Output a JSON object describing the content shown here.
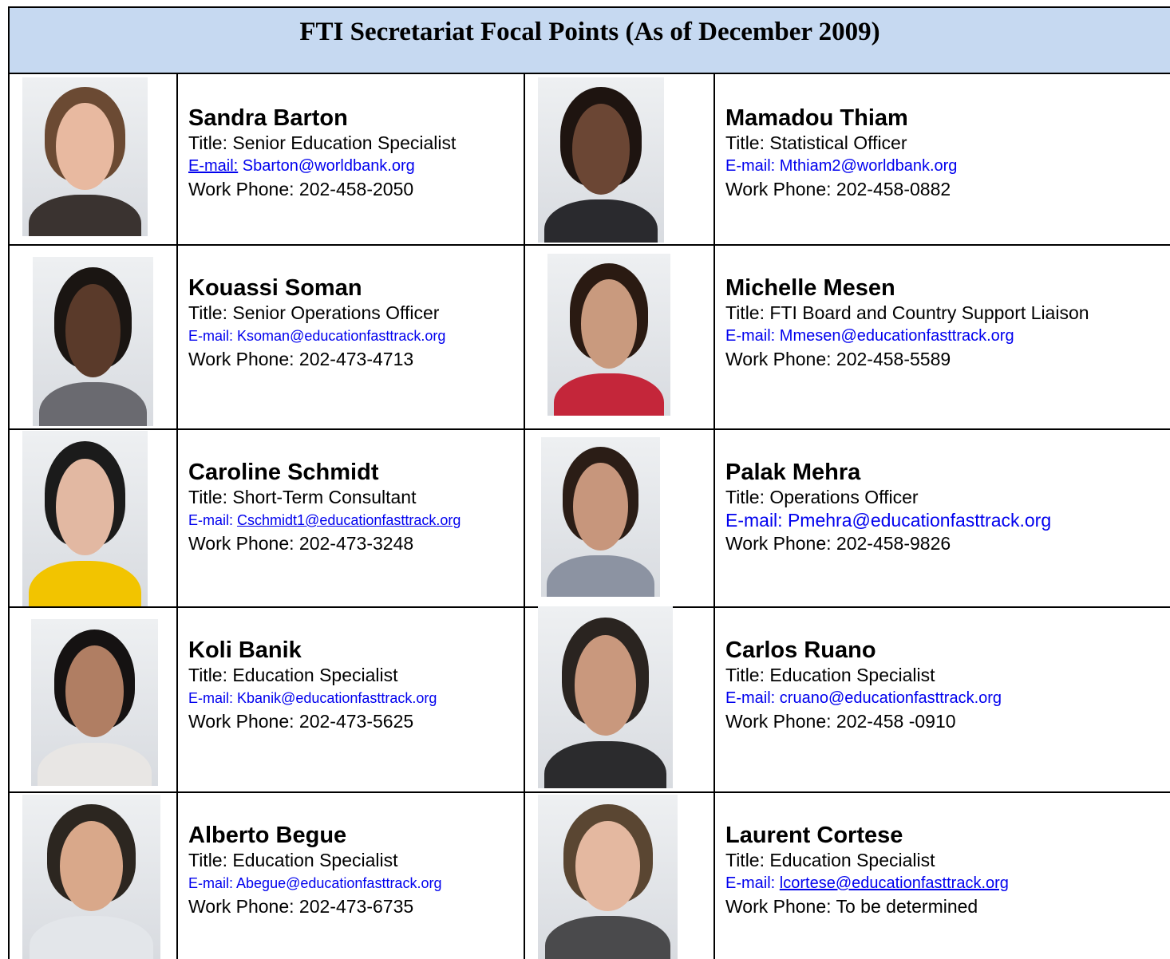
{
  "header": {
    "title": "FTI Secretariat Focal Points (As of December 2009)"
  },
  "people": [
    {
      "name": "Sandra Barton",
      "title": "Title: Senior Education Specialist",
      "email_label": "E-mail:",
      "email": "Sbarton@worldbank.org",
      "phone": "Work Phone: 202-458-2050"
    },
    {
      "name": "Mamadou Thiam",
      "title": "Title: Statistical Officer",
      "email_label": "E-mail:",
      "email": "Mthiam2@worldbank.org",
      "phone": "Work Phone: 202-458-0882"
    },
    {
      "name": "Kouassi Soman",
      "title": "Title: Senior Operations Officer",
      "email_label": "E-mail:",
      "email": "Ksoman@educationfasttrack.org",
      "phone": "Work Phone: 202-473-4713"
    },
    {
      "name": "Michelle Mesen",
      "title": "Title: FTI Board and Country Support Liaison",
      "email_label": "E-mail:",
      "email": "Mmesen@educationfasttrack.org",
      "phone": "Work Phone: 202-458-5589"
    },
    {
      "name": "Caroline Schmidt",
      "title": "Title: Short-Term Consultant",
      "email_label": "E-mail:",
      "email": "Cschmidt1@educationfasttrack.org",
      "phone": "Work Phone: 202-473-3248"
    },
    {
      "name": "Palak Mehra",
      "title": "Title: Operations Officer",
      "email_label": "E-mail:",
      "email": "Pmehra@educationfasttrack.org",
      "phone": "Work Phone: 202-458-9826"
    },
    {
      "name": "Koli Banik",
      "title": "Title: Education Specialist",
      "email_label": "E-mail:",
      "email": "Kbanik@educationfasttrack.org",
      "phone": "Work Phone: 202-473-5625"
    },
    {
      "name": "Carlos Ruano",
      "title": "Title: Education Specialist",
      "email_label": "E-mail:",
      "email": "cruano@educationfasttrack.org",
      "phone": "Work Phone: 202-458 -0910"
    },
    {
      "name": "Alberto Begue",
      "title": "Title: Education Specialist",
      "email_label": "E-mail:",
      "email": "Abegue@educationfasttrack.org",
      "phone": "Work Phone: 202-473-6735"
    },
    {
      "name": "Laurent Cortese",
      "title": "Title: Education Specialist",
      "email_label": "E-mail:",
      "email": "lcortese@educationfasttrack.org",
      "phone": "Work Phone: To be determined"
    }
  ]
}
